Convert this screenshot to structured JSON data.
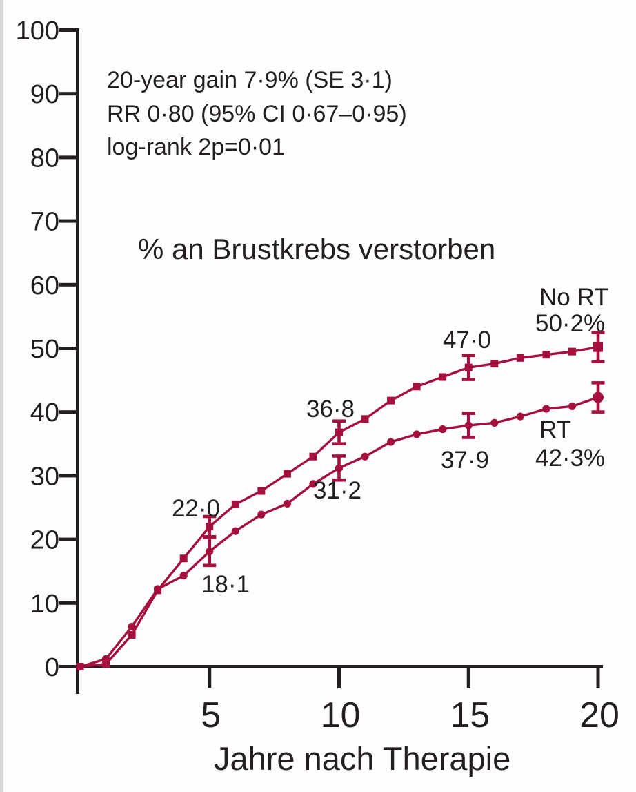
{
  "chart_data": {
    "type": "line",
    "title": "% an Brustkrebs verstorben",
    "xlabel": "Jahre nach Therapie",
    "ylabel": "",
    "xlim": [
      0,
      20
    ],
    "ylim": [
      0,
      100
    ],
    "x_ticks": [
      5,
      10,
      15,
      20
    ],
    "x_tick_labels": [
      "5",
      "10",
      "15",
      "20"
    ],
    "y_ticks": [
      0,
      10,
      20,
      30,
      40,
      50,
      60,
      70,
      80,
      90,
      100
    ],
    "y_tick_labels": [
      "0",
      "10",
      "20",
      "30",
      "40",
      "50",
      "60",
      "70",
      "80",
      "90",
      "100"
    ],
    "grid": false,
    "legend_position": "end-of-curve",
    "annotations": [
      "20-year gain 7·9% (SE 3·1)",
      "RR 0·80 (95% CI 0·67–0·95)",
      "log-rank 2p=0·01"
    ],
    "x": [
      0,
      1,
      2,
      3,
      4,
      5,
      6,
      7,
      8,
      9,
      10,
      11,
      12,
      13,
      14,
      15,
      16,
      17,
      18,
      19,
      20
    ],
    "series": [
      {
        "name": "No RT",
        "marker": "square",
        "color": "#a6103f",
        "values": [
          0,
          0.4,
          5.0,
          12.0,
          17.0,
          22.0,
          25.5,
          27.6,
          30.3,
          33.0,
          36.8,
          38.9,
          41.8,
          44.0,
          45.5,
          47.0,
          47.6,
          48.5,
          49.0,
          49.5,
          50.2
        ],
        "error_bars": [
          {
            "x": 5,
            "y": 22.0,
            "half": 1.6
          },
          {
            "x": 10,
            "y": 36.8,
            "half": 1.8
          },
          {
            "x": 15,
            "y": 47.0,
            "half": 1.9
          },
          {
            "x": 20,
            "y": 50.2,
            "half": 2.3
          }
        ],
        "point_labels": [
          {
            "x": 5,
            "text": "22·0"
          },
          {
            "x": 10,
            "text": "36·8"
          },
          {
            "x": 15,
            "text": "47·0"
          }
        ],
        "end_label": "No RT",
        "end_value": "50·2%"
      },
      {
        "name": "RT",
        "marker": "circle",
        "color": "#a6103f",
        "values": [
          0,
          1.2,
          6.3,
          12.2,
          14.3,
          18.1,
          21.3,
          23.9,
          25.6,
          28.7,
          31.2,
          33.0,
          35.3,
          36.5,
          37.3,
          37.9,
          38.3,
          39.3,
          40.5,
          40.9,
          42.3
        ],
        "error_bars": [
          {
            "x": 5,
            "y": 18.1,
            "half": 2.2
          },
          {
            "x": 10,
            "y": 31.2,
            "half": 1.9
          },
          {
            "x": 15,
            "y": 37.9,
            "half": 1.9
          },
          {
            "x": 20,
            "y": 42.3,
            "half": 2.3
          }
        ],
        "point_labels": [
          {
            "x": 5,
            "text": "18·1"
          },
          {
            "x": 10,
            "text": "31·2"
          },
          {
            "x": 15,
            "text": "37·9"
          }
        ],
        "end_label": "RT",
        "end_value": "42·3%"
      }
    ]
  },
  "colors": {
    "curve": "#a6103f",
    "axis": "#231f20",
    "text": "#231f20",
    "background": "#fefefe"
  }
}
